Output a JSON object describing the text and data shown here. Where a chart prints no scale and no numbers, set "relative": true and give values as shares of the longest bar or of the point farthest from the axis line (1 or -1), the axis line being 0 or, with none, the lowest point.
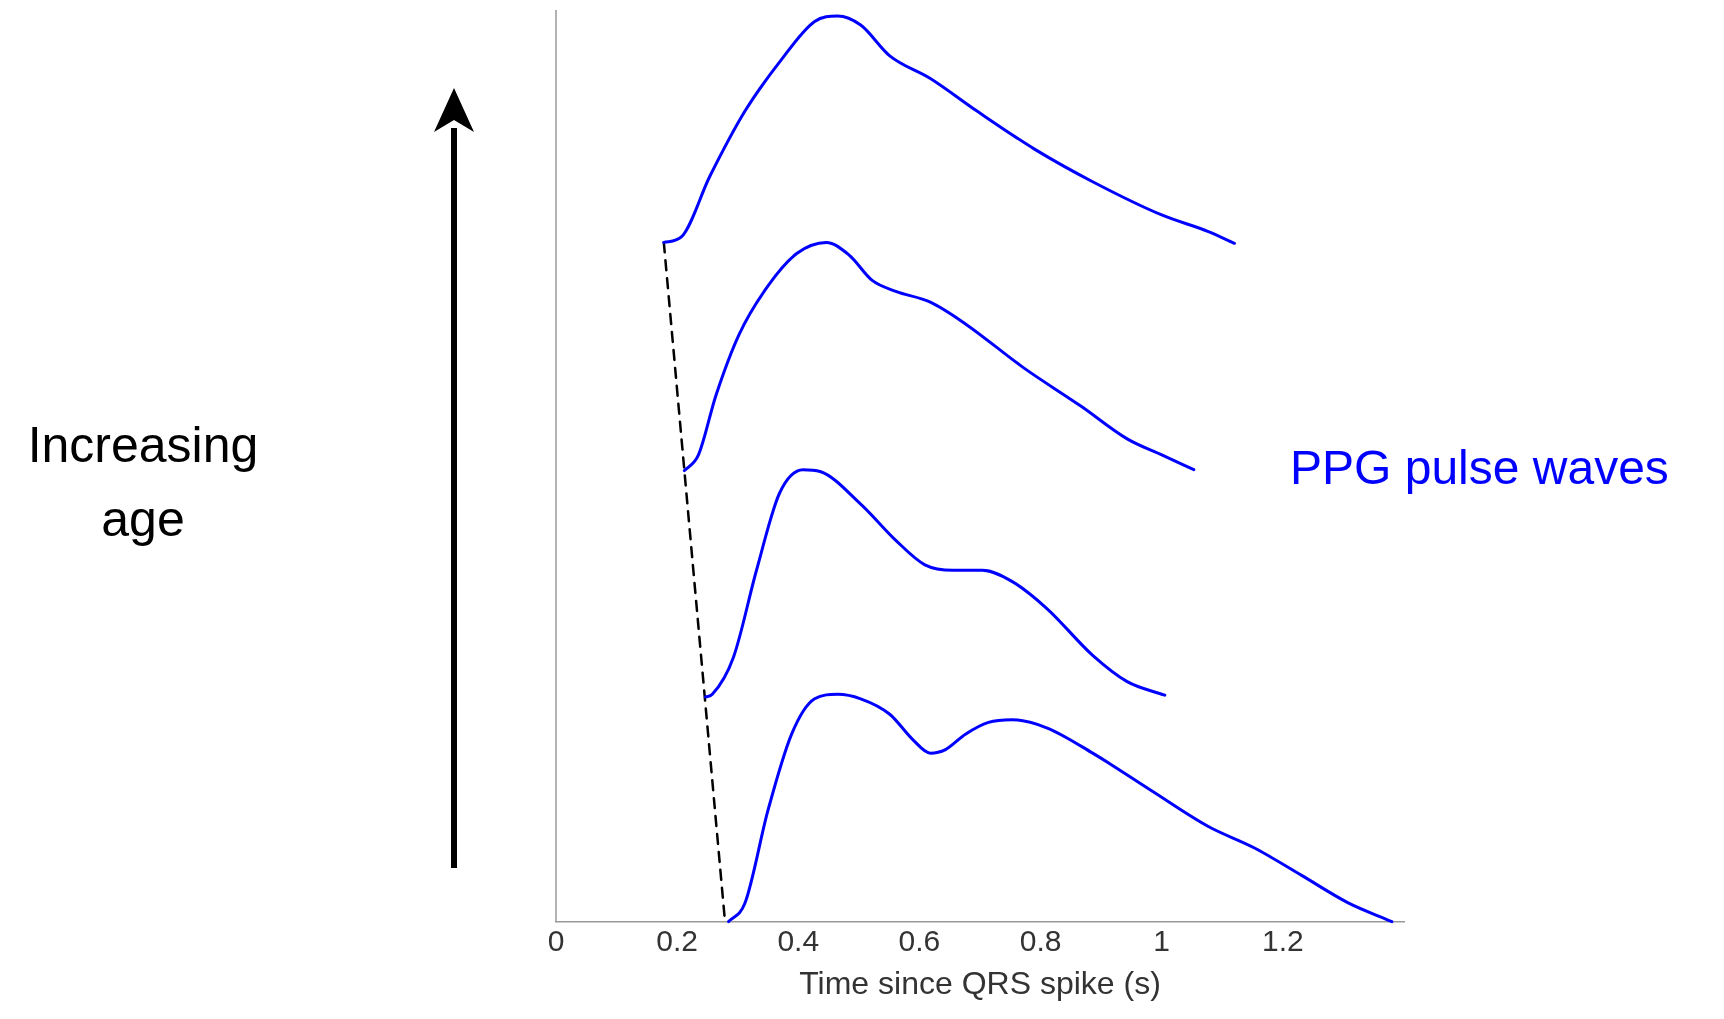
{
  "chart_data": {
    "type": "line",
    "relative": true,
    "xlabel": "Time since QRS spike (s)",
    "xlim": [
      0,
      1.4
    ],
    "xticks": [
      0,
      0.2,
      0.4,
      0.6,
      0.8,
      1,
      1.2
    ],
    "tick_labels": "x",
    "grid": false,
    "legend": false,
    "marker": "none",
    "annotations": [
      "Increasing age",
      "PPG pulse waves"
    ],
    "series": [
      {
        "color": "#0000ff",
        "x": [
          0.178,
          0.207,
          0.254,
          0.312,
          0.369,
          0.427,
          0.465,
          0.503,
          0.551,
          0.618,
          0.695,
          0.79,
          0.886,
          1.001,
          1.077,
          1.12
        ],
        "values": [
          0.75,
          0.756,
          0.823,
          0.895,
          0.949,
          0.994,
          1,
          0.99,
          0.956,
          0.931,
          0.895,
          0.853,
          0.817,
          0.78,
          0.762,
          0.749
        ]
      },
      {
        "color": "#0000ff",
        "x": [
          0.212,
          0.235,
          0.264,
          0.302,
          0.35,
          0.398,
          0.446,
          0.484,
          0.522,
          0.561,
          0.618,
          0.676,
          0.771,
          0.867,
          0.943,
          1.001,
          1.053
        ],
        "values": [
          0.498,
          0.515,
          0.581,
          0.648,
          0.702,
          0.738,
          0.75,
          0.736,
          0.708,
          0.696,
          0.684,
          0.66,
          0.612,
          0.569,
          0.533,
          0.515,
          0.499
        ]
      },
      {
        "color": "#0000ff",
        "x": [
          0.247,
          0.258,
          0.293,
          0.331,
          0.369,
          0.408,
          0.436,
          0.503,
          0.561,
          0.609,
          0.656,
          0.704,
          0.752,
          0.81,
          0.886,
          0.943,
          1.005
        ],
        "values": [
          0.248,
          0.251,
          0.292,
          0.388,
          0.473,
          0.499,
          0.497,
          0.461,
          0.421,
          0.394,
          0.388,
          0.388,
          0.376,
          0.346,
          0.294,
          0.265,
          0.25
        ]
      },
      {
        "color": "#0000ff",
        "x": [
          0.285,
          0.312,
          0.35,
          0.389,
          0.427,
          0.465,
          0.503,
          0.551,
          0.589,
          0.618,
          0.643,
          0.676,
          0.714,
          0.752,
          0.81,
          0.886,
          0.982,
          1.077,
          1.154,
          1.231,
          1.307,
          1.38
        ],
        "values": [
          0,
          0.0205,
          0.123,
          0.207,
          0.246,
          0.251,
          0.246,
          0.229,
          0.201,
          0.186,
          0.19,
          0.207,
          0.22,
          0.223,
          0.214,
          0.186,
          0.145,
          0.105,
          0.081,
          0.051,
          0.021,
          0
        ]
      },
      {
        "color": "#000000",
        "line_style": "dashed",
        "x": [
          0.178,
          0.279
        ],
        "values": [
          0.75,
          0
        ]
      }
    ]
  }
}
